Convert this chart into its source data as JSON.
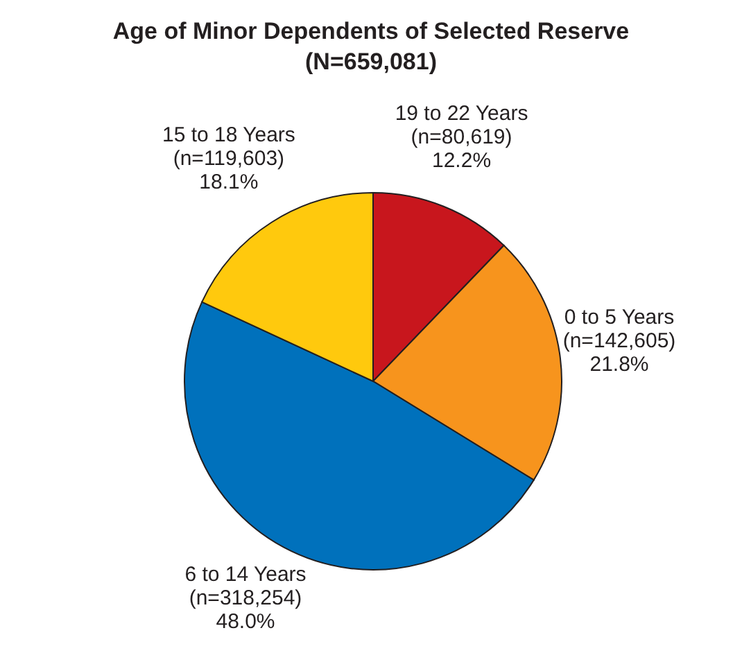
{
  "chart_data": {
    "type": "pie",
    "title": "Age of Minor Dependents of Selected Reserve\n(N=659,081)",
    "categories": [
      "19 to 22 Years",
      "0 to 5 Years",
      "6 to 14 Years",
      "15 to 18 Years"
    ],
    "values": [
      80619,
      142605,
      318254,
      119603
    ],
    "value_labels": [
      "(n=80,619)\n12.2%",
      "(n=142,605)\n21.8%",
      "(n=318,254)\n48.0%",
      "(n=119,603)\n18.1%"
    ],
    "colors": [
      "#c8161d",
      "#f7941d",
      "#0071bc",
      "#ffc90d"
    ]
  }
}
